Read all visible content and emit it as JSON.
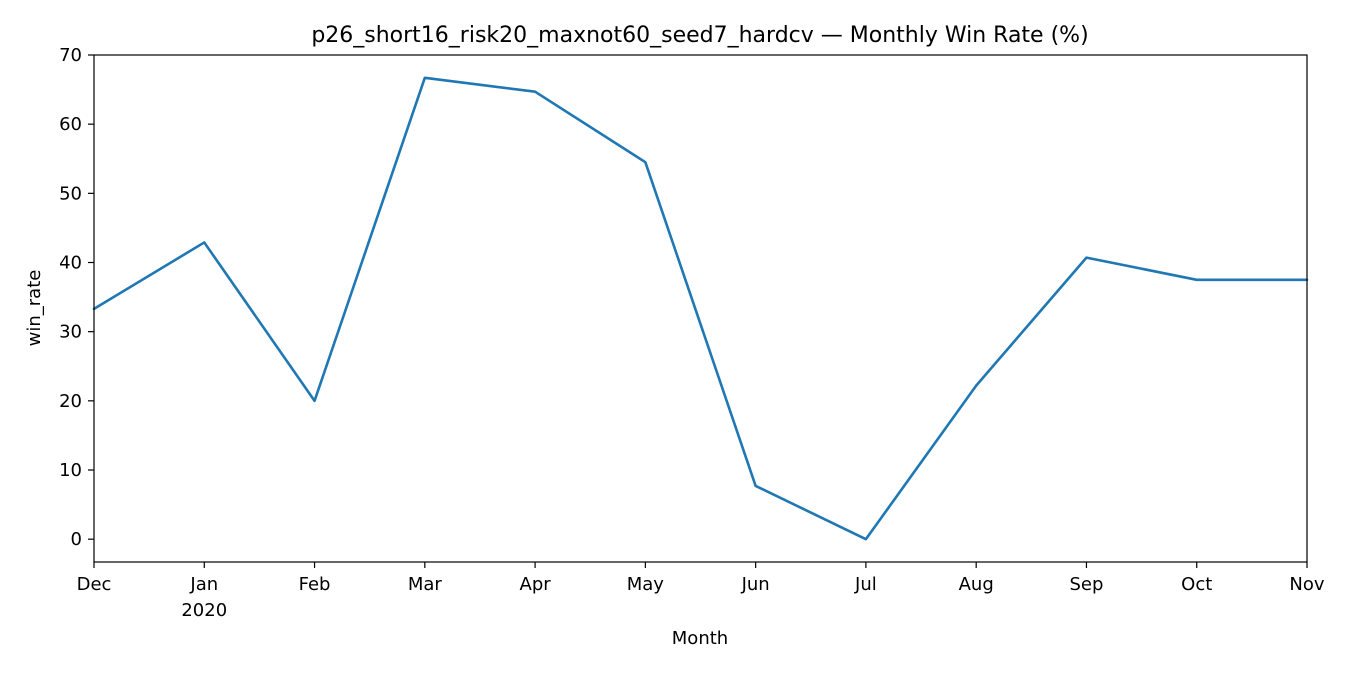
{
  "chart_data": {
    "type": "line",
    "title": "p26_short16_risk20_maxnot60_seed7_hardcv — Monthly Win Rate (%)",
    "xlabel": "Month",
    "ylabel": "win_rate",
    "x": [
      "2019-12",
      "2020-01",
      "2020-02",
      "2020-03",
      "2020-04",
      "2020-05",
      "2020-06",
      "2020-07",
      "2020-08",
      "2020-09",
      "2020-10",
      "2020-11"
    ],
    "x_tick_labels": [
      "Dec",
      "Jan",
      "Feb",
      "Mar",
      "Apr",
      "May",
      "Jun",
      "Jul",
      "Aug",
      "Sep",
      "Oct",
      "Nov"
    ],
    "x_year_label": "2020",
    "series": [
      {
        "values": [
          33.3,
          42.9,
          20.0,
          66.7,
          64.7,
          54.5,
          7.7,
          0.0,
          22.2,
          40.7,
          37.5,
          37.5
        ],
        "color": "#1f77b4"
      }
    ],
    "ylim": [
      -3.3,
      70
    ],
    "yticks": [
      0,
      10,
      20,
      30,
      40,
      50,
      60,
      70
    ],
    "grid": false
  }
}
